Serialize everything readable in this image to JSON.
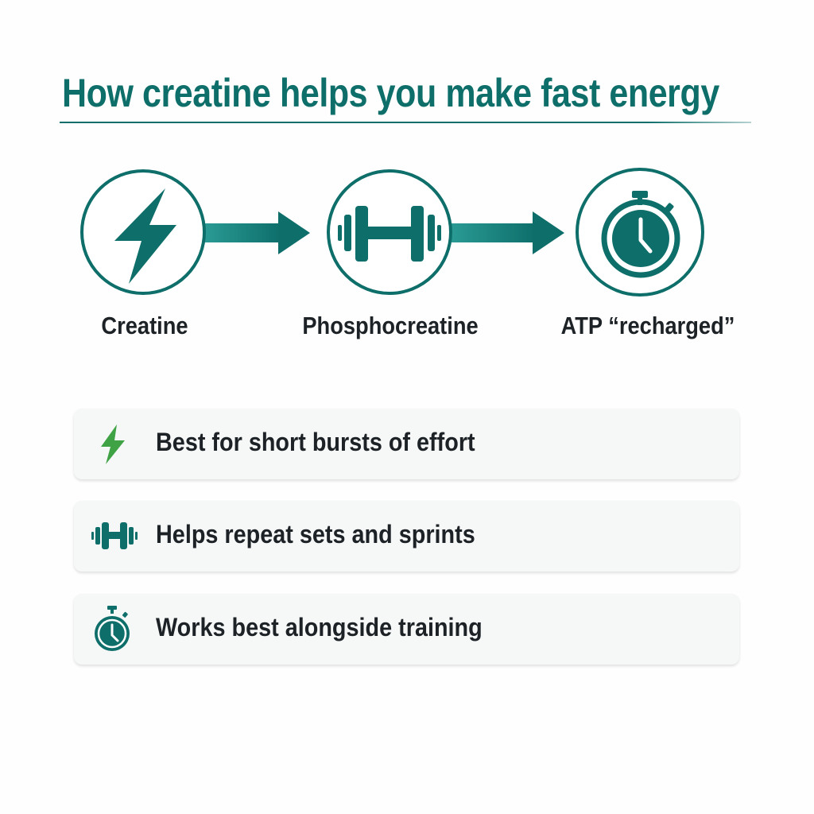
{
  "title": "How creatine helps you make fast energy",
  "colors": {
    "accent": "#0e6e6a",
    "bolt_green": "#3fa345",
    "text": "#1d2226"
  },
  "flow": {
    "steps": [
      {
        "label": "Creatine",
        "icon": "lightning-bolt-icon"
      },
      {
        "label": "Phosphocreatine",
        "icon": "dumbbell-icon"
      },
      {
        "label": "ATP “recharged”",
        "icon": "stopwatch-icon"
      }
    ]
  },
  "cards": [
    {
      "text": "Best for short bursts of effort",
      "icon": "lightning-bolt-icon"
    },
    {
      "text": "Helps repeat sets and sprints",
      "icon": "dumbbell-icon"
    },
    {
      "text": "Works best alongside training",
      "icon": "stopwatch-icon"
    }
  ]
}
